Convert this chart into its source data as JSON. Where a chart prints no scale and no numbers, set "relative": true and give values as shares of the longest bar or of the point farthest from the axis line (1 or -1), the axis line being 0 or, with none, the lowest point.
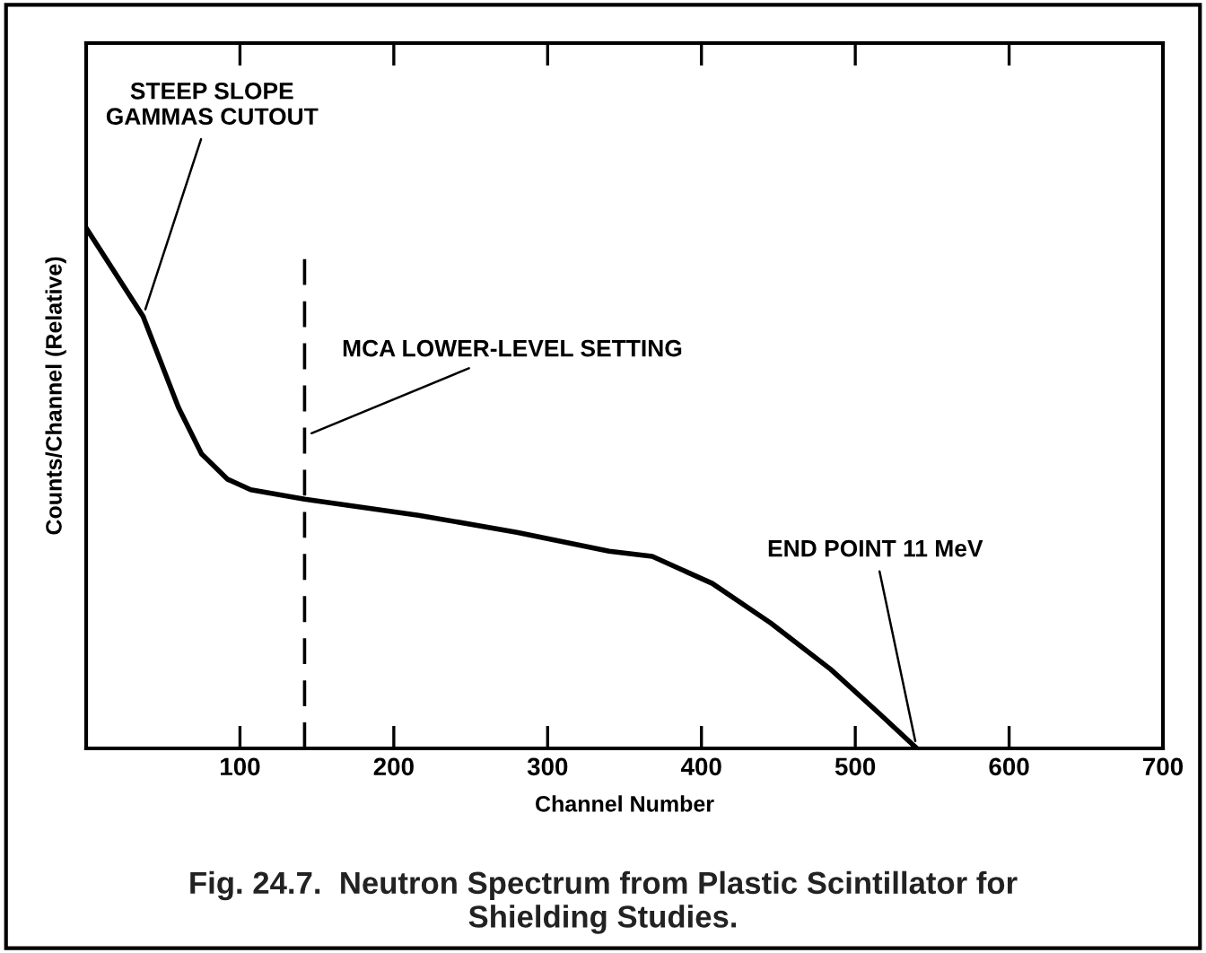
{
  "chart_data": {
    "type": "line",
    "xlabel": "Channel Number",
    "ylabel": "Counts/Channel (Relative)",
    "relative": true,
    "x": [
      0,
      37,
      60,
      75,
      92,
      107,
      142,
      216,
      280,
      340,
      368,
      407,
      445,
      484,
      516,
      540
    ],
    "xlim": [
      0,
      700
    ],
    "xticks": [
      {
        "value": 0,
        "label": null
      },
      100,
      200,
      300,
      400,
      500,
      600,
      700
    ],
    "series": [
      {
        "color": "#000000",
        "values": [
          1,
          0.83,
          0.655,
          0.566,
          0.517,
          0.497,
          0.479,
          0.448,
          0.415,
          0.379,
          0.369,
          0.317,
          0.241,
          0.152,
          0.066,
          0
        ]
      }
    ],
    "ref_lines": [
      {
        "axis": "x",
        "value": 142,
        "color": "#000000",
        "line_style": "dashed"
      }
    ],
    "annotations": [
      {
        "text": "STEEP SLOPE\nGAMMAS CUTOUT",
        "x": 37,
        "y": 0.83
      },
      {
        "text": "MCA LOWER-LEVEL SETTING",
        "x": 142,
        "y": 0.6
      },
      {
        "text": "END POINT 11 MeV",
        "x": 540,
        "y": 0
      },
      "Fig. 24.7.  Neutron Spectrum from Plastic Scintillator for\nShielding Studies."
    ],
    "grid": false,
    "legend": false
  }
}
